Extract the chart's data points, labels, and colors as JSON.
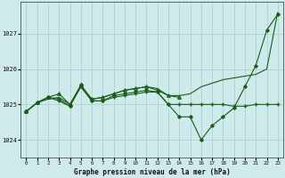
{
  "bg_color": "#ceeaea",
  "grid_color": "#aacccc",
  "line_color": "#1a5c1a",
  "title": "Graphe pression niveau de la mer (hPa)",
  "xlim": [
    -0.5,
    23.5
  ],
  "ylim": [
    1023.5,
    1027.9
  ],
  "yticks": [
    1024,
    1025,
    1026,
    1027
  ],
  "xticks": [
    0,
    1,
    2,
    3,
    4,
    5,
    6,
    7,
    8,
    9,
    10,
    11,
    12,
    13,
    14,
    15,
    16,
    17,
    18,
    19,
    20,
    21,
    22,
    23
  ],
  "series_line_x": [
    0,
    1,
    2,
    3,
    4,
    5,
    6,
    7,
    8,
    9,
    10,
    11,
    12,
    13,
    14,
    15,
    16,
    17,
    18,
    19,
    20,
    21,
    22,
    23
  ],
  "series_line_y": [
    1024.8,
    1025.05,
    1025.15,
    1025.2,
    1025.0,
    1025.5,
    1025.15,
    1025.2,
    1025.3,
    1025.4,
    1025.45,
    1025.5,
    1025.45,
    1025.25,
    1025.25,
    1025.3,
    1025.5,
    1025.6,
    1025.7,
    1025.75,
    1025.8,
    1025.85,
    1026.0,
    1027.6
  ],
  "series_dot_x": [
    0,
    1,
    2,
    3,
    4,
    5,
    6,
    7,
    8,
    9,
    10,
    11,
    12,
    13,
    14,
    15,
    16,
    17,
    18,
    19,
    20,
    21,
    22,
    23
  ],
  "series_dot_y": [
    1024.8,
    1025.05,
    1025.2,
    1025.15,
    1024.95,
    1025.55,
    1025.1,
    1025.1,
    1025.25,
    1025.3,
    1025.35,
    1025.4,
    1025.35,
    1025.0,
    1024.65,
    1024.65,
    1024.0,
    1024.4,
    1024.65,
    1024.9,
    1025.5,
    1026.1,
    1027.1,
    1027.55
  ],
  "series_flat_x": [
    0,
    1,
    2,
    3,
    4,
    5,
    6,
    7,
    8,
    9,
    10,
    11,
    12,
    13,
    14,
    15,
    16,
    17,
    18,
    19,
    20,
    21,
    22,
    23
  ],
  "series_flat_y": [
    1024.8,
    1025.05,
    1025.2,
    1025.1,
    1024.95,
    1025.5,
    1025.1,
    1025.1,
    1025.2,
    1025.25,
    1025.3,
    1025.35,
    1025.35,
    1025.0,
    1025.0,
    1025.0,
    1025.0,
    1025.0,
    1025.0,
    1024.95,
    1024.95,
    1025.0,
    1025.0,
    1025.0
  ],
  "series_tri_x": [
    0,
    1,
    2,
    3,
    4,
    5,
    6,
    7,
    8,
    9,
    10,
    11,
    12,
    13,
    14
  ],
  "series_tri_y": [
    1024.8,
    1025.05,
    1025.2,
    1025.3,
    1025.0,
    1025.55,
    1025.15,
    1025.2,
    1025.3,
    1025.4,
    1025.45,
    1025.5,
    1025.4,
    1025.25,
    1025.2
  ]
}
